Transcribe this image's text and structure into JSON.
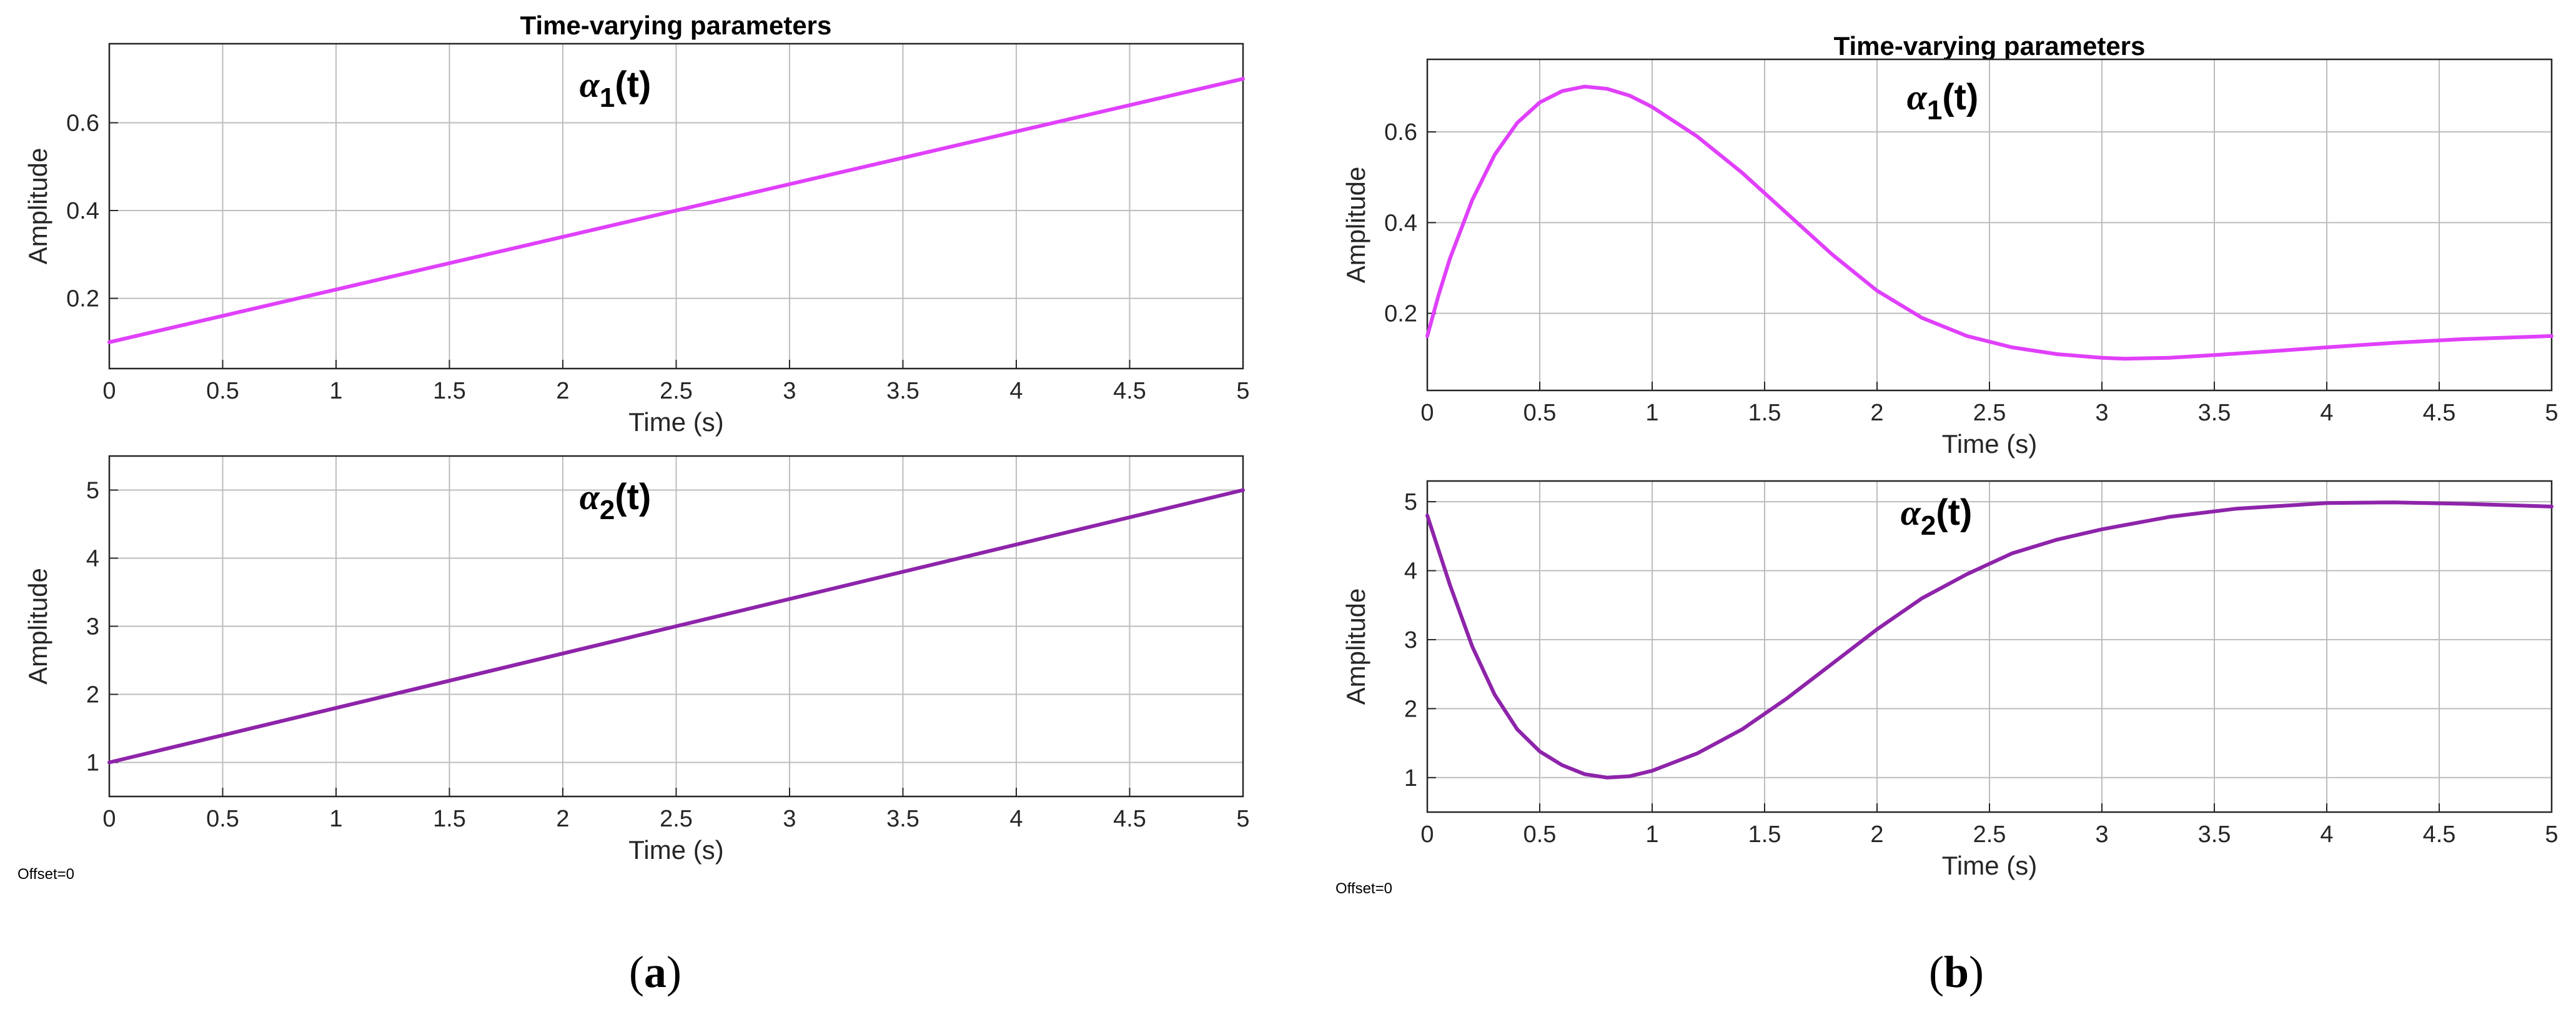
{
  "panels": [
    {
      "caption_letter": "a",
      "title": "Time-varying parameters",
      "offset_note": "Offset=0",
      "charts": [
        {
          "type": "line",
          "annotation": "α1(t)",
          "annotation_base": "α",
          "annotation_sub": "1",
          "annotation_tail": "(t)",
          "xlabel": "Time (s)",
          "ylabel": "Amplitude",
          "xlim": [
            0,
            5
          ],
          "ylim": [
            0.04,
            0.78
          ],
          "xticks": [
            0,
            0.5,
            1,
            1.5,
            2,
            2.5,
            3,
            3.5,
            4,
            4.5,
            5
          ],
          "yticks": [
            0.2,
            0.4,
            0.6
          ],
          "series": [
            {
              "color": "#e040fb",
              "x": [
                0,
                5
              ],
              "y": [
                0.1,
                0.7
              ]
            }
          ]
        },
        {
          "type": "line",
          "annotation": "α2(t)",
          "annotation_base": "α",
          "annotation_sub": "2",
          "annotation_tail": "(t)",
          "xlabel": "Time (s)",
          "ylabel": "Amplitude",
          "xlim": [
            0,
            5
          ],
          "ylim": [
            0.5,
            5.5
          ],
          "xticks": [
            0,
            0.5,
            1,
            1.5,
            2,
            2.5,
            3,
            3.5,
            4,
            4.5,
            5
          ],
          "yticks": [
            1,
            2,
            3,
            4,
            5
          ],
          "series": [
            {
              "color": "#8e24aa",
              "x": [
                0,
                5
              ],
              "y": [
                1,
                5
              ]
            }
          ]
        }
      ]
    },
    {
      "caption_letter": "b",
      "title": "Time-varying parameters",
      "offset_note": "Offset=0",
      "charts": [
        {
          "type": "line",
          "annotation": "α1(t)",
          "annotation_base": "α",
          "annotation_sub": "1",
          "annotation_tail": "(t)",
          "xlabel": "Time (s)",
          "ylabel": "Amplitude",
          "xlim": [
            0,
            5
          ],
          "ylim": [
            0.03,
            0.76
          ],
          "xticks": [
            0,
            0.5,
            1,
            1.5,
            2,
            2.5,
            3,
            3.5,
            4,
            4.5,
            5
          ],
          "yticks": [
            0.2,
            0.4,
            0.6
          ],
          "series": [
            {
              "color": "#e040fb",
              "x": [
                0,
                0.05,
                0.1,
                0.2,
                0.3,
                0.4,
                0.5,
                0.6,
                0.7,
                0.8,
                0.9,
                1.0,
                1.2,
                1.4,
                1.6,
                1.8,
                2.0,
                2.2,
                2.4,
                2.6,
                2.8,
                3.0,
                3.1,
                3.3,
                3.5,
                3.8,
                4.0,
                4.3,
                4.6,
                5.0
              ],
              "y": [
                0.15,
                0.24,
                0.32,
                0.45,
                0.55,
                0.62,
                0.665,
                0.69,
                0.7,
                0.695,
                0.68,
                0.655,
                0.59,
                0.51,
                0.42,
                0.33,
                0.25,
                0.19,
                0.15,
                0.125,
                0.11,
                0.102,
                0.1,
                0.102,
                0.108,
                0.118,
                0.125,
                0.135,
                0.143,
                0.15
              ]
            }
          ]
        },
        {
          "type": "line",
          "annotation": "α2(t)",
          "annotation_base": "α",
          "annotation_sub": "2",
          "annotation_tail": "(t)",
          "xlabel": "Time (s)",
          "ylabel": "Amplitude",
          "xlim": [
            0,
            5
          ],
          "ylim": [
            0.5,
            5.3
          ],
          "xticks": [
            0,
            0.5,
            1,
            1.5,
            2,
            2.5,
            3,
            3.5,
            4,
            4.5,
            5
          ],
          "yticks": [
            1,
            2,
            3,
            4,
            5
          ],
          "series": [
            {
              "color": "#8e24aa",
              "x": [
                0,
                0.1,
                0.2,
                0.3,
                0.4,
                0.5,
                0.6,
                0.7,
                0.8,
                0.9,
                1.0,
                1.2,
                1.4,
                1.6,
                1.8,
                2.0,
                2.2,
                2.4,
                2.6,
                2.8,
                3.0,
                3.3,
                3.6,
                4.0,
                4.3,
                4.6,
                5.0
              ],
              "y": [
                4.8,
                3.8,
                2.9,
                2.2,
                1.7,
                1.38,
                1.18,
                1.05,
                1.0,
                1.02,
                1.1,
                1.35,
                1.7,
                2.15,
                2.65,
                3.15,
                3.6,
                3.95,
                4.25,
                4.45,
                4.6,
                4.78,
                4.9,
                4.98,
                4.99,
                4.97,
                4.93
              ]
            }
          ]
        }
      ]
    }
  ]
}
